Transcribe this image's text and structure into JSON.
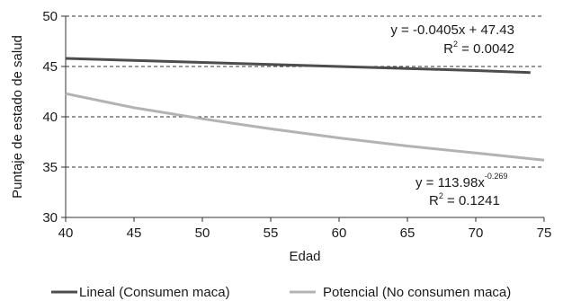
{
  "chart_data": {
    "type": "line",
    "xlabel": "Edad",
    "ylabel": "Puntaje de estado de salud",
    "xlim": [
      40,
      75
    ],
    "ylim": [
      30,
      50
    ],
    "xticks": [
      "40",
      "45",
      "50",
      "55",
      "60",
      "65",
      "70",
      "75"
    ],
    "yticks": [
      "30",
      "35",
      "40",
      "45",
      "50"
    ],
    "grid": "horizontal dashed",
    "legend_position": "bottom",
    "series": [
      {
        "name": "Lineal (Consumen maca)",
        "color": "#4d4d4d",
        "model": "linear",
        "x_range": [
          40,
          74
        ],
        "x": [
          40,
          45,
          50,
          55,
          60,
          65,
          70,
          74
        ],
        "y": [
          45.8,
          45.6,
          45.4,
          45.2,
          45.0,
          44.8,
          44.6,
          44.4
        ]
      },
      {
        "name": "Potencial (No consumen maca)",
        "color": "#b3b3b3",
        "model": "power",
        "x_range": [
          40,
          75
        ],
        "x": [
          40,
          45,
          50,
          55,
          60,
          65,
          70,
          75
        ],
        "y": [
          42.3,
          40.9,
          39.8,
          38.8,
          37.9,
          37.1,
          36.4,
          35.7
        ]
      }
    ],
    "annotations": [
      {
        "line1": "y = -0.0405x + 47.43",
        "line2_pre": "R",
        "line2_sup": "2",
        "line2_post": " = 0.0042"
      },
      {
        "line1_pre": "y = 113.98x",
        "line1_sup": "-0.269",
        "line2_pre": "R",
        "line2_sup": "2",
        "line2_post": " = 0.1241"
      }
    ]
  }
}
